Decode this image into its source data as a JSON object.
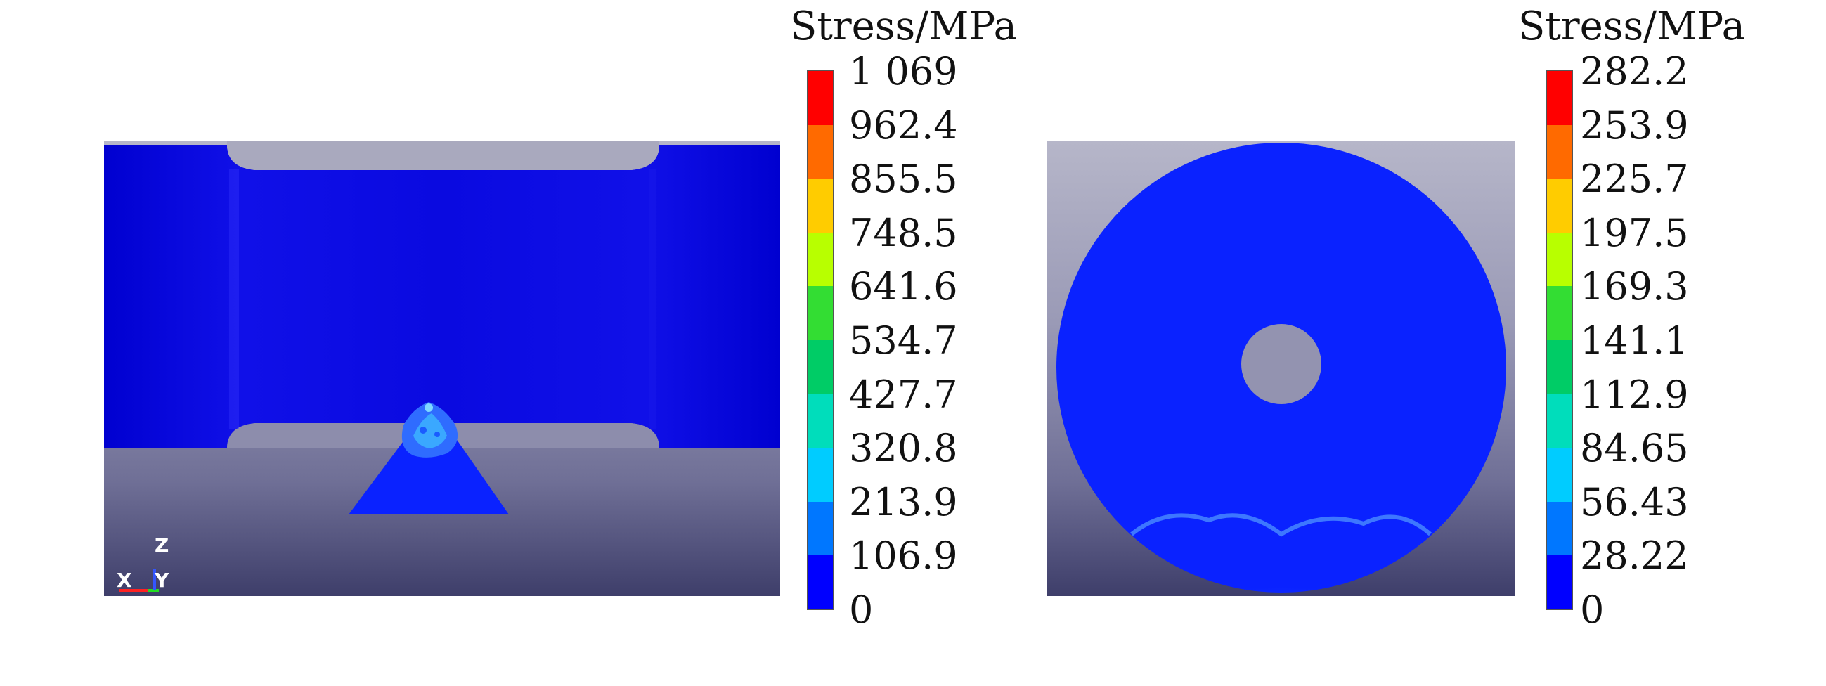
{
  "panels": [
    {
      "name": "side-view",
      "colorbar": {
        "title": "Stress/MPa",
        "ticks": [
          "1 069",
          "962.4",
          "855.5",
          "748.5",
          "641.6",
          "534.7",
          "427.7",
          "320.8",
          "213.9",
          "106.9",
          "0"
        ]
      },
      "axes": {
        "z": "Z",
        "x": "X",
        "y": "Y"
      }
    },
    {
      "name": "top-view",
      "colorbar": {
        "title": "Stress/MPa",
        "ticks": [
          "282.2",
          "253.9",
          "225.7",
          "197.5",
          "169.3",
          "141.1",
          "112.9",
          "84.65",
          "56.43",
          "28.22",
          "0"
        ]
      }
    }
  ],
  "colorbar_colors": [
    "#ff0000",
    "#ff6a00",
    "#ffcc00",
    "#b8ff00",
    "#33dd33",
    "#00cc66",
    "#00ddbb",
    "#00ccff",
    "#0077ff",
    "#0000ff"
  ]
}
